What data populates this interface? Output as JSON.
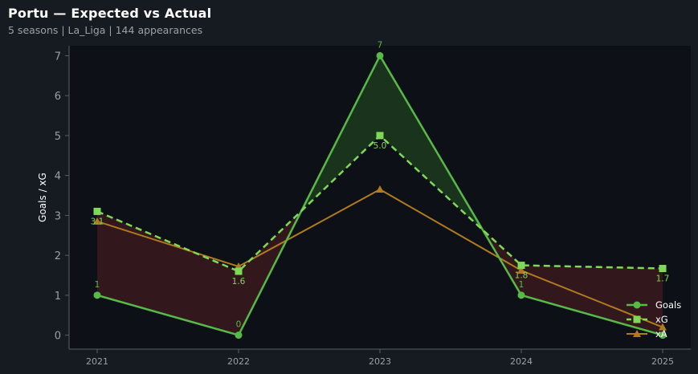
{
  "header": {
    "title": "Portu — Expected vs Actual",
    "subtitle": "5 seasons | La_Liga | 144 appearances"
  },
  "colors": {
    "background": "#161b22",
    "plot_bg": "#0d1117",
    "goals": "#57b947",
    "xg": "#7ed957",
    "xa": "#b07a1e",
    "over_fill": "#1c3a1f",
    "under_fill": "#3a1a1e",
    "axis": "#5a5f66"
  },
  "chart_data": {
    "type": "line",
    "x": [
      "2021",
      "2022",
      "2023",
      "2024",
      "2025"
    ],
    "ylabel": "Goals / xG",
    "xlabel": "",
    "ylim": [
      -0.35,
      7.25
    ],
    "yticks": [
      0,
      1,
      2,
      3,
      4,
      5,
      6,
      7
    ],
    "grid": false,
    "legend_position": "bottom-right",
    "series": [
      {
        "name": "Goals",
        "values": [
          1,
          0,
          7,
          1,
          0
        ],
        "labels": [
          "1",
          "0",
          "7",
          "1",
          ""
        ],
        "marker": "circle",
        "style": "solid"
      },
      {
        "name": "xG",
        "values": [
          3.1,
          1.6,
          5.0,
          1.75,
          1.67
        ],
        "labels": [
          "3.1",
          "1.6",
          "5.0",
          "1.8",
          "1.7"
        ],
        "marker": "square",
        "style": "dashed"
      },
      {
        "name": "xA",
        "values": [
          2.85,
          1.72,
          3.65,
          1.62,
          0.2
        ],
        "marker": "triangle",
        "style": "solid"
      }
    ]
  }
}
